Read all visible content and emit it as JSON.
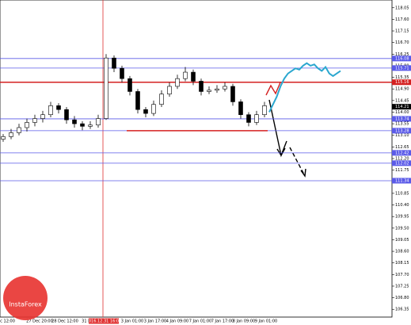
{
  "chart_data": {
    "type": "candlestick",
    "candles": [
      [
        112.95,
        113.15,
        112.85,
        113.05
      ],
      [
        113.05,
        113.35,
        112.95,
        113.2
      ],
      [
        113.2,
        113.55,
        113.1,
        113.4
      ],
      [
        113.4,
        113.75,
        113.25,
        113.6
      ],
      [
        113.6,
        113.9,
        113.45,
        113.75
      ],
      [
        113.75,
        114.05,
        113.6,
        113.9
      ],
      [
        113.9,
        114.4,
        113.8,
        114.25
      ],
      [
        114.25,
        114.35,
        113.95,
        114.1
      ],
      [
        114.1,
        114.2,
        113.55,
        113.7
      ],
      [
        113.7,
        113.85,
        113.4,
        113.55
      ],
      [
        113.55,
        113.65,
        113.3,
        113.45
      ],
      [
        113.45,
        113.65,
        113.35,
        113.5
      ],
      [
        113.5,
        113.9,
        113.4,
        113.75
      ],
      [
        113.75,
        116.25,
        113.7,
        116.1
      ],
      [
        116.1,
        116.2,
        115.55,
        115.7
      ],
      [
        115.7,
        115.8,
        115.15,
        115.3
      ],
      [
        115.3,
        115.4,
        114.65,
        114.8
      ],
      [
        114.8,
        114.9,
        113.95,
        114.1
      ],
      [
        114.1,
        114.2,
        113.8,
        113.95
      ],
      [
        113.95,
        114.45,
        113.85,
        114.3
      ],
      [
        114.3,
        114.85,
        114.2,
        114.7
      ],
      [
        114.7,
        115.15,
        114.6,
        115.0
      ],
      [
        115.0,
        115.45,
        114.9,
        115.3
      ],
      [
        115.3,
        115.75,
        115.2,
        115.55
      ],
      [
        115.55,
        115.65,
        115.05,
        115.2
      ],
      [
        115.2,
        115.3,
        114.65,
        114.8
      ],
      [
        114.8,
        115.0,
        114.7,
        114.85
      ],
      [
        114.85,
        115.05,
        114.75,
        114.9
      ],
      [
        114.9,
        115.15,
        114.8,
        115.0
      ],
      [
        115.0,
        115.1,
        114.25,
        114.4
      ],
      [
        114.4,
        114.5,
        113.75,
        113.9
      ],
      [
        113.9,
        114.0,
        113.45,
        113.6
      ],
      [
        113.6,
        114.05,
        113.5,
        113.9
      ],
      [
        113.9,
        114.4,
        113.8,
        114.25
      ]
    ],
    "projection": {
      "color": "#2aa7cf",
      "values": [
        114.0,
        114.3,
        114.6,
        115.0,
        115.3,
        115.5,
        115.6,
        115.7,
        115.65,
        115.8,
        115.9,
        115.8,
        115.85,
        115.7,
        115.6,
        115.75,
        115.5,
        115.4,
        115.5,
        115.6
      ]
    },
    "levels": [
      {
        "value": 116.08,
        "color": "#5a5ae8"
      },
      {
        "value": 115.71,
        "color": "#5a5ae8"
      },
      {
        "value": 115.16,
        "color": "#d42020"
      },
      {
        "value": 113.74,
        "color": "#5a5ae8"
      },
      {
        "value": 113.28,
        "color": "#5a5ae8"
      },
      {
        "value": 112.42,
        "color": "#5a5ae8"
      },
      {
        "value": 112.02,
        "color": "#5a5ae8"
      },
      {
        "value": 111.34,
        "color": "#5a5ae8"
      }
    ],
    "support_segment": {
      "value": 113.28,
      "color": "#d42020"
    },
    "current_price": 114.21,
    "x_labels": [
      "ec 12:00",
      "27 Dec 20:00",
      "28 Dec 12:00",
      "31 Dec",
      "3 Jan 01:00",
      "3 Jan 17:00",
      "4 Jan 09:00",
      "7 Jan 01:00",
      "7 Jan 17:00",
      "8 Jan 09:00",
      "9 Jan 01:00"
    ],
    "marker_label": "2016.12.31 16:00",
    "ylim": [
      106.05,
      118.35
    ],
    "yticks": [
      106.35,
      {
        "value": 106.8,
        "label": "106.80"
      },
      107.25,
      {
        "value": 107.7,
        "label": "107.70"
      },
      108.15,
      {
        "value": 108.6,
        "label": "108.60"
      },
      109.05,
      {
        "value": 109.5,
        "label": "109.50"
      },
      109.95,
      {
        "value": 110.4,
        "label": "110.40"
      },
      110.85,
      {
        "value": 111.3,
        "label": "111.30"
      },
      111.75,
      {
        "value": 112.2,
        "label": "112.20"
      },
      112.65,
      {
        "value": 113.1,
        "label": "113.10"
      },
      113.55,
      {
        "value": 114.0,
        "label": "114.00"
      },
      114.45,
      {
        "value": 114.9,
        "label": "114.90"
      },
      115.35,
      {
        "value": 115.8,
        "label": "115.80"
      },
      116.25,
      {
        "value": 116.7,
        "label": "116.70"
      },
      117.15,
      {
        "value": 117.6,
        "label": "117.60"
      },
      118.05
    ],
    "watermark": "InstaForex"
  }
}
